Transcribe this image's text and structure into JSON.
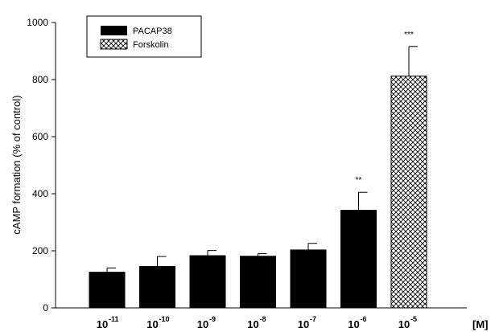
{
  "chart_data": {
    "type": "bar",
    "ylabel": "cAMP formation (% of control)",
    "ylim": [
      0,
      1000
    ],
    "yticks": [
      "0",
      "200",
      "400",
      "600",
      "800",
      "1000"
    ],
    "unit_label": "[M]",
    "categories": [
      {
        "base": "10",
        "exp": "-11"
      },
      {
        "base": "10",
        "exp": "-10"
      },
      {
        "base": "10",
        "exp": "-9"
      },
      {
        "base": "10",
        "exp": "-8"
      },
      {
        "base": "10",
        "exp": "-7"
      },
      {
        "base": "10",
        "exp": "-6"
      },
      {
        "base": "10",
        "exp": "-5"
      }
    ],
    "bars": [
      {
        "series": 0,
        "value": 125,
        "error": 15,
        "sig": ""
      },
      {
        "series": 0,
        "value": 145,
        "error": 35,
        "sig": ""
      },
      {
        "series": 0,
        "value": 183,
        "error": 18,
        "sig": ""
      },
      {
        "series": 0,
        "value": 181,
        "error": 9,
        "sig": ""
      },
      {
        "series": 0,
        "value": 203,
        "error": 23,
        "sig": ""
      },
      {
        "series": 0,
        "value": 342,
        "error": 63,
        "sig": "**"
      },
      {
        "series": 1,
        "value": 812,
        "error": 104,
        "sig": "***"
      }
    ],
    "series": [
      {
        "name": "PACAP38",
        "fill": "#000000"
      },
      {
        "name": "Forskolin",
        "fill": "crosshatch"
      }
    ],
    "legend_position": "top-left",
    "grid": false
  }
}
